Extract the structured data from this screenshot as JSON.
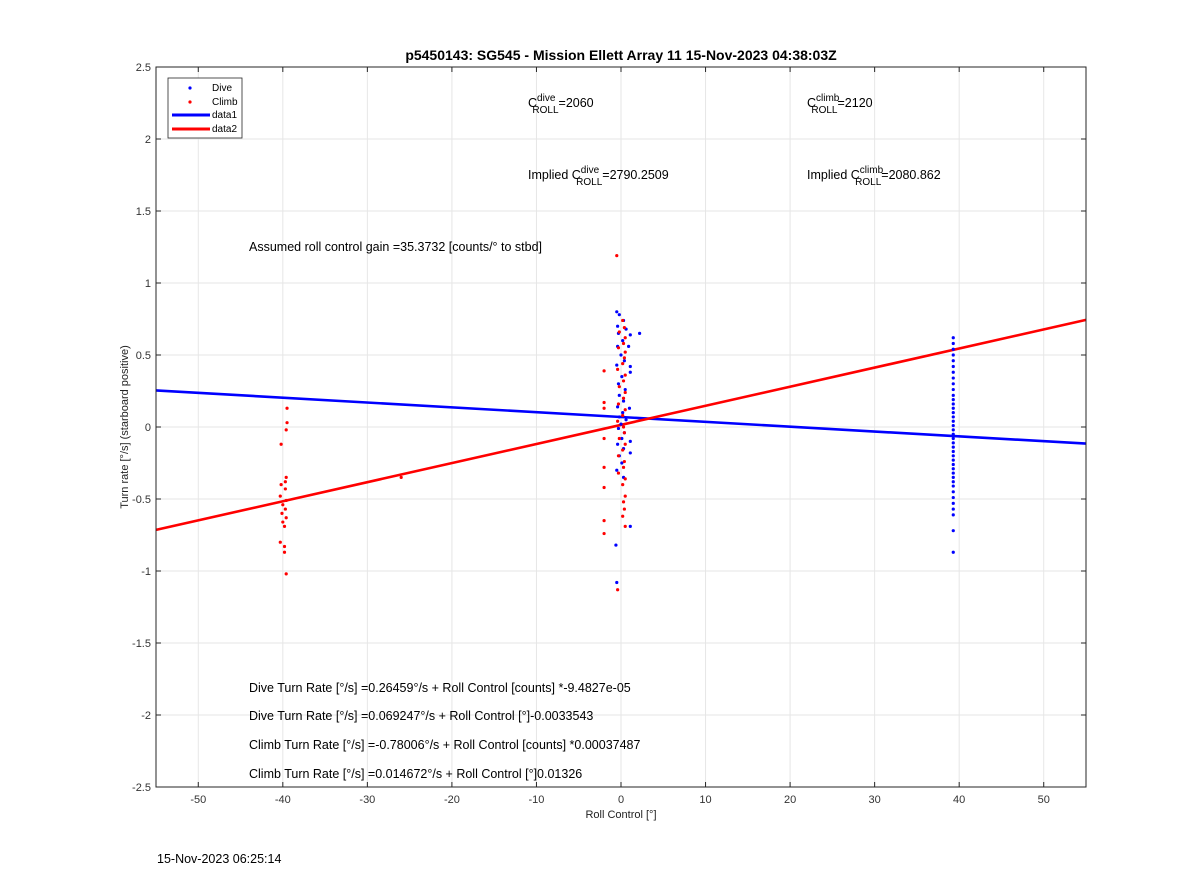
{
  "footer_timestamp": "15-Nov-2023 06:25:14",
  "chart_data": {
    "type": "scatter",
    "title": "p5450143: SG545 - Mission Ellett Array 11 15-Nov-2023 04:38:03Z",
    "xlabel": "Roll Control [°]",
    "ylabel": "Turn rate [°/s] (starboard positive)",
    "xlim": [
      -55,
      55
    ],
    "ylim": [
      -2.5,
      2.5
    ],
    "xticks": [
      -50,
      -40,
      -30,
      -20,
      -10,
      0,
      10,
      20,
      30,
      40,
      50
    ],
    "yticks": [
      -2.5,
      -2,
      -1.5,
      -1,
      -0.5,
      0,
      0.5,
      1,
      1.5,
      2,
      2.5
    ],
    "ytick_labels": [
      "-2.5",
      "-2",
      "-1.5",
      "-1",
      "-0.5",
      "0",
      "0.5",
      "1",
      "1.5",
      "2",
      "2.5"
    ],
    "grid": true,
    "legend_position": "top-left",
    "legend": [
      {
        "label": "Dive",
        "kind": "marker",
        "color": "#0000ff"
      },
      {
        "label": "Climb",
        "kind": "marker",
        "color": "#ff0000"
      },
      {
        "label": "data1",
        "kind": "line",
        "color": "#0000ff"
      },
      {
        "label": "data2",
        "kind": "line",
        "color": "#ff0000"
      }
    ],
    "series": [
      {
        "name": "Dive",
        "kind": "scatter",
        "color": "#0000ff",
        "points": [
          [
            -0.5,
            0.8
          ],
          [
            -0.2,
            0.78
          ],
          [
            0.3,
            0.74
          ],
          [
            -0.4,
            0.7
          ],
          [
            0.6,
            0.68
          ],
          [
            -0.3,
            0.65
          ],
          [
            2.2,
            0.65
          ],
          [
            1.1,
            0.64
          ],
          [
            0.2,
            0.6
          ],
          [
            -0.4,
            0.56
          ],
          [
            0.9,
            0.56
          ],
          [
            0.0,
            0.5
          ],
          [
            0.4,
            0.46
          ],
          [
            -0.5,
            0.43
          ],
          [
            1.1,
            0.42
          ],
          [
            1.1,
            0.38
          ],
          [
            0.1,
            0.35
          ],
          [
            -0.3,
            0.3
          ],
          [
            0.5,
            0.26
          ],
          [
            -0.2,
            0.22
          ],
          [
            0.3,
            0.18
          ],
          [
            -0.4,
            0.14
          ],
          [
            1.0,
            0.13
          ],
          [
            0.2,
            0.1
          ],
          [
            -0.2,
            0.07
          ],
          [
            0.6,
            0.05
          ],
          [
            0.0,
            0.02
          ],
          [
            -0.3,
            -0.01
          ],
          [
            0.4,
            -0.04
          ],
          [
            0.1,
            -0.08
          ],
          [
            1.1,
            -0.1
          ],
          [
            -0.4,
            -0.12
          ],
          [
            0.3,
            -0.15
          ],
          [
            1.1,
            -0.18
          ],
          [
            -0.2,
            -0.2
          ],
          [
            0.1,
            -0.25
          ],
          [
            -0.5,
            -0.3
          ],
          [
            0.3,
            -0.35
          ],
          [
            -0.6,
            -0.82
          ],
          [
            1.1,
            -0.69
          ],
          [
            -0.5,
            -1.08
          ],
          [
            39.3,
            0.62
          ],
          [
            39.3,
            0.58
          ],
          [
            39.3,
            0.54
          ],
          [
            39.3,
            0.5
          ],
          [
            39.3,
            0.46
          ],
          [
            39.3,
            0.42
          ],
          [
            39.3,
            0.38
          ],
          [
            39.3,
            0.34
          ],
          [
            39.3,
            0.3
          ],
          [
            39.3,
            0.26
          ],
          [
            39.3,
            0.22
          ],
          [
            39.3,
            0.19
          ],
          [
            39.3,
            0.16
          ],
          [
            39.3,
            0.13
          ],
          [
            39.3,
            0.1
          ],
          [
            39.3,
            0.07
          ],
          [
            39.3,
            0.04
          ],
          [
            39.3,
            0.01
          ],
          [
            39.3,
            -0.02
          ],
          [
            39.3,
            -0.05
          ],
          [
            39.3,
            -0.08
          ],
          [
            39.3,
            -0.11
          ],
          [
            39.3,
            -0.14
          ],
          [
            39.3,
            -0.17
          ],
          [
            39.3,
            -0.2
          ],
          [
            39.3,
            -0.23
          ],
          [
            39.3,
            -0.26
          ],
          [
            39.3,
            -0.29
          ],
          [
            39.3,
            -0.32
          ],
          [
            39.3,
            -0.35
          ],
          [
            39.3,
            -0.38
          ],
          [
            39.3,
            -0.41
          ],
          [
            39.3,
            -0.45
          ],
          [
            39.3,
            -0.49
          ],
          [
            39.3,
            -0.53
          ],
          [
            39.3,
            -0.57
          ],
          [
            39.3,
            -0.61
          ],
          [
            39.3,
            -0.72
          ],
          [
            39.3,
            -0.87
          ]
        ]
      },
      {
        "name": "Climb",
        "kind": "scatter",
        "color": "#ff0000",
        "points": [
          [
            -0.5,
            1.19
          ],
          [
            0.2,
            0.74
          ],
          [
            0.4,
            0.69
          ],
          [
            -0.2,
            0.66
          ],
          [
            0.5,
            0.62
          ],
          [
            0.3,
            0.58
          ],
          [
            -0.3,
            0.55
          ],
          [
            0.5,
            0.52
          ],
          [
            0.4,
            0.48
          ],
          [
            0.2,
            0.44
          ],
          [
            -0.4,
            0.4
          ],
          [
            0.5,
            0.36
          ],
          [
            0.3,
            0.32
          ],
          [
            -0.2,
            0.28
          ],
          [
            0.5,
            0.24
          ],
          [
            0.3,
            0.2
          ],
          [
            -0.3,
            0.16
          ],
          [
            0.5,
            0.12
          ],
          [
            0.2,
            0.08
          ],
          [
            -0.4,
            0.04
          ],
          [
            0.3,
            0.0
          ],
          [
            0.4,
            -0.04
          ],
          [
            -0.2,
            -0.08
          ],
          [
            0.5,
            -0.12
          ],
          [
            0.2,
            -0.16
          ],
          [
            -0.3,
            -0.2
          ],
          [
            0.4,
            -0.24
          ],
          [
            0.3,
            -0.28
          ],
          [
            -0.3,
            -0.32
          ],
          [
            0.5,
            -0.36
          ],
          [
            0.2,
            -0.4
          ],
          [
            0.5,
            -0.48
          ],
          [
            0.3,
            -0.52
          ],
          [
            0.4,
            -0.57
          ],
          [
            0.2,
            -0.62
          ],
          [
            0.5,
            -0.69
          ],
          [
            -0.4,
            -1.13
          ],
          [
            -2.0,
            0.39
          ],
          [
            -2.0,
            0.17
          ],
          [
            -2.0,
            0.13
          ],
          [
            -2.0,
            -0.08
          ],
          [
            -2.0,
            -0.28
          ],
          [
            -2.0,
            -0.42
          ],
          [
            -2.0,
            -0.65
          ],
          [
            -2.0,
            -0.74
          ],
          [
            -39.5,
            0.13
          ],
          [
            -39.5,
            0.03
          ],
          [
            -39.6,
            -0.02
          ],
          [
            -40.2,
            -0.12
          ],
          [
            -39.6,
            -0.35
          ],
          [
            -39.7,
            -0.38
          ],
          [
            -40.2,
            -0.4
          ],
          [
            -39.7,
            -0.43
          ],
          [
            -40.3,
            -0.48
          ],
          [
            -39.6,
            -0.51
          ],
          [
            -40.0,
            -0.54
          ],
          [
            -39.7,
            -0.57
          ],
          [
            -40.1,
            -0.6
          ],
          [
            -39.6,
            -0.63
          ],
          [
            -40.0,
            -0.66
          ],
          [
            -39.8,
            -0.69
          ],
          [
            -40.3,
            -0.8
          ],
          [
            -39.8,
            -0.83
          ],
          [
            -39.8,
            -0.87
          ],
          [
            -39.6,
            -1.02
          ],
          [
            -26.0,
            -0.35
          ]
        ]
      },
      {
        "name": "data1",
        "kind": "line",
        "color": "#0000ff",
        "x": [
          -55,
          55
        ],
        "y": [
          0.2538,
          -0.1152
        ]
      },
      {
        "name": "data2",
        "kind": "line",
        "color": "#ff0000",
        "x": [
          -55,
          55
        ],
        "y": [
          -0.7146,
          0.7439
        ]
      }
    ],
    "annotations": {
      "c_roll_dive": {
        "prefix": "C",
        "sup": "dive",
        "sub": "ROLL",
        "value": "=2060"
      },
      "c_roll_climb": {
        "prefix": "C",
        "sup": "climb",
        "sub": "ROLL",
        "value": "=2120"
      },
      "implied_dive": {
        "prefix": "Implied C",
        "sup": "dive",
        "sub": "ROLL",
        "value": "=2790.2509"
      },
      "implied_climb": {
        "prefix": "Implied C",
        "sup": "climb",
        "sub": "ROLL",
        "value": "=2080.862"
      },
      "gain": "Assumed roll control gain =35.3732 [counts/° to stbd]",
      "dive_counts": "Dive Turn Rate [°/s] =0.26459°/s + Roll Control [counts] *-9.4827e-05",
      "dive_deg": "Dive Turn Rate [°/s] =0.069247°/s + Roll Control [°]-0.0033543",
      "climb_counts": "Climb Turn Rate [°/s] =-0.78006°/s + Roll Control [counts] *0.00037487",
      "climb_deg": "Climb Turn Rate [°/s] =0.014672°/s + Roll Control [°]0.01326"
    }
  }
}
